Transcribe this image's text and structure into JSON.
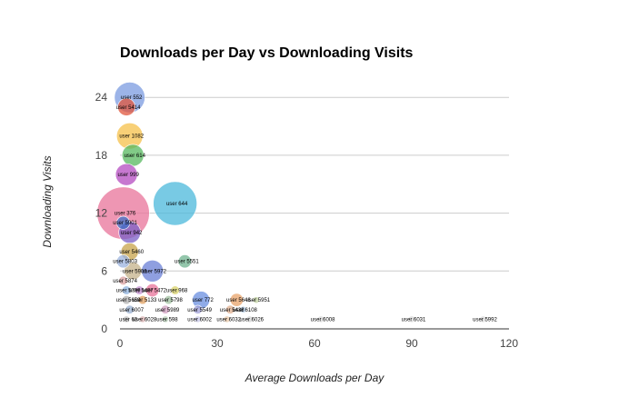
{
  "chart_data": {
    "type": "scatter",
    "variant": "bubble",
    "title": "Downloads per Day vs Downloading Visits",
    "xlabel": "Average Downloads per Day",
    "ylabel": "Downloading Visits",
    "xlim": [
      0,
      120
    ],
    "ylim": [
      0,
      26
    ],
    "xticks": [
      "0",
      "30",
      "60",
      "90",
      "120"
    ],
    "yticks": [
      "0",
      "6",
      "12",
      "18",
      "24"
    ],
    "grid": true,
    "legend": "none",
    "points": [
      {
        "label": "user 552",
        "x": 3,
        "y": 24,
        "size": 7,
        "color": "#7b9be0"
      },
      {
        "label": "user 5414",
        "x": 2,
        "y": 23,
        "size": 4,
        "color": "#e0553c"
      },
      {
        "label": "user 1082",
        "x": 3,
        "y": 20,
        "size": 6,
        "color": "#f5c04a"
      },
      {
        "label": "user 614",
        "x": 4,
        "y": 18,
        "size": 5,
        "color": "#57b85f"
      },
      {
        "label": "user 999",
        "x": 2,
        "y": 16,
        "size": 5,
        "color": "#b44bc0"
      },
      {
        "label": "user 644",
        "x": 17,
        "y": 13,
        "size": 10,
        "color": "#4bb8db"
      },
      {
        "label": "user 376",
        "x": 1,
        "y": 12,
        "size": 12,
        "color": "#e8739a"
      },
      {
        "label": "user 5901",
        "x": 1,
        "y": 11,
        "size": 3,
        "color": "#3d6fc4"
      },
      {
        "label": "user 942",
        "x": 3,
        "y": 10,
        "size": 5,
        "color": "#7a5fc6"
      },
      {
        "label": "user 5460",
        "x": 3,
        "y": 8,
        "size": 4,
        "color": "#c7a34b"
      },
      {
        "label": "user 5803",
        "x": 1,
        "y": 7,
        "size": 3,
        "color": "#9bb3df"
      },
      {
        "label": "user 5551",
        "x": 20,
        "y": 7,
        "size": 3,
        "color": "#6fb38f"
      },
      {
        "label": "user 5906",
        "x": 4,
        "y": 6,
        "size": 4,
        "color": "#c4b28a"
      },
      {
        "label": "user 5972",
        "x": 10,
        "y": 6,
        "size": 5,
        "color": "#6a7fd6"
      },
      {
        "label": "user 5874",
        "x": 1,
        "y": 5,
        "size": 2,
        "color": "#d9a0a0"
      },
      {
        "label": "user 5799",
        "x": 2,
        "y": 4,
        "size": 2,
        "color": "#8fb3e0"
      },
      {
        "label": "user 5407",
        "x": 6,
        "y": 4,
        "size": 2,
        "color": "#c690d4"
      },
      {
        "label": "user 5472",
        "x": 10,
        "y": 4,
        "size": 3,
        "color": "#e8739a"
      },
      {
        "label": "user 968",
        "x": 17,
        "y": 4,
        "size": 2,
        "color": "#d9d36a"
      },
      {
        "label": "user 5659",
        "x": 2,
        "y": 3,
        "size": 2,
        "color": "#b0b0b0"
      },
      {
        "label": "user 5133",
        "x": 7,
        "y": 3,
        "size": 2,
        "color": "#e0a060"
      },
      {
        "label": "user 5798",
        "x": 15,
        "y": 3,
        "size": 2,
        "color": "#a0c0a0"
      },
      {
        "label": "user 772",
        "x": 25,
        "y": 3,
        "size": 4,
        "color": "#6a8fe0"
      },
      {
        "label": "user 5646",
        "x": 36,
        "y": 3,
        "size": 3,
        "color": "#e8a36a"
      },
      {
        "label": "user 5951",
        "x": 42,
        "y": 3,
        "size": 1.5,
        "color": "#c0d0a0"
      },
      {
        "label": "user 6007",
        "x": 3,
        "y": 2,
        "size": 2,
        "color": "#9ab0d0"
      },
      {
        "label": "user 5989",
        "x": 14,
        "y": 2,
        "size": 2,
        "color": "#d0a0c0"
      },
      {
        "label": "user 5549",
        "x": 24,
        "y": 2,
        "size": 2,
        "color": "#a0a0d8"
      },
      {
        "label": "user 5438",
        "x": 34,
        "y": 2,
        "size": 2,
        "color": "#e0b090"
      },
      {
        "label": "user 6108",
        "x": 38,
        "y": 2,
        "size": 1.5,
        "color": "#b0c8e0"
      },
      {
        "label": "user 60",
        "x": 2,
        "y": 1,
        "size": 1.5,
        "color": "#c0c0c0"
      },
      {
        "label": "user 6028",
        "x": 7,
        "y": 1,
        "size": 1.5,
        "color": "#d8b0b0"
      },
      {
        "label": "user 598",
        "x": 14,
        "y": 1,
        "size": 1.5,
        "color": "#b8d0b8"
      },
      {
        "label": "user 6002",
        "x": 24,
        "y": 1,
        "size": 1.5,
        "color": "#c8c8e8"
      },
      {
        "label": "user 6032",
        "x": 33,
        "y": 1,
        "size": 1.5,
        "color": "#e8c8a8"
      },
      {
        "label": "user 6026",
        "x": 40,
        "y": 1,
        "size": 1.5,
        "color": "#d0d0d0"
      },
      {
        "label": "user 6008",
        "x": 62,
        "y": 1,
        "size": 1.5,
        "color": "#d8d8d8"
      },
      {
        "label": "user 6031",
        "x": 90,
        "y": 1,
        "size": 1.5,
        "color": "#d8d8d8"
      },
      {
        "label": "user 5992",
        "x": 112,
        "y": 1,
        "size": 1.5,
        "color": "#d8d8d8"
      }
    ]
  }
}
